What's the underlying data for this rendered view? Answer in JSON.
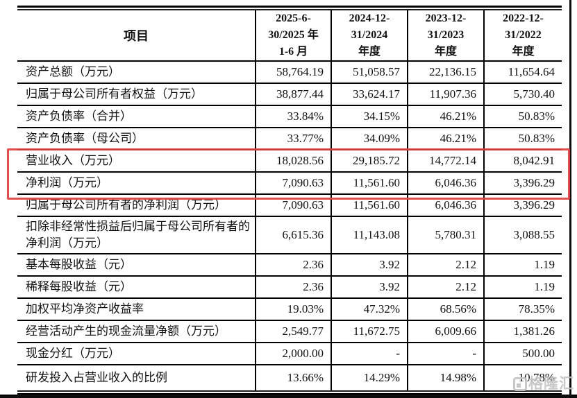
{
  "table": {
    "header": {
      "item_label": "项目",
      "periods": [
        "2025-6-\n30/2025 年\n1-6 月",
        "2024-12-\n31/2024\n年度",
        "2023-12-\n31/2023\n年度",
        "2022-12-\n31/2022\n年度"
      ]
    },
    "rows": [
      {
        "label": "资产总额（万元）",
        "values": [
          "58,764.19",
          "51,058.57",
          "22,136.15",
          "11,654.64"
        ],
        "highlighted": false
      },
      {
        "label": "归属于母公司所有者权益（万元）",
        "values": [
          "38,877.44",
          "33,624.17",
          "11,907.36",
          "5,730.40"
        ],
        "highlighted": false
      },
      {
        "label": "资产负债率（合并）",
        "values": [
          "33.84%",
          "34.15%",
          "46.21%",
          "50.83%"
        ],
        "highlighted": false
      },
      {
        "label": "资产负债率（母公司）",
        "values": [
          "33.77%",
          "34.09%",
          "46.21%",
          "50.83%"
        ],
        "highlighted": false
      },
      {
        "label": "营业收入（万元）",
        "values": [
          "18,028.56",
          "29,185.72",
          "14,772.14",
          "8,042.91"
        ],
        "highlighted": true
      },
      {
        "label": "净利润（万元）",
        "values": [
          "7,090.63",
          "11,561.60",
          "6,046.36",
          "3,396.29"
        ],
        "highlighted": true
      },
      {
        "label": "归属于母公司所有者的净利润（万元）",
        "values": [
          "7,090.63",
          "11,561.60",
          "6,046.36",
          "3,396.29"
        ],
        "highlighted": false
      },
      {
        "label": "扣除非经常性损益后归属于母公司所有者的净利润（万元）",
        "values": [
          "6,615.36",
          "11,143.08",
          "5,780.31",
          "3,088.55"
        ],
        "highlighted": false
      },
      {
        "label": "基本每股收益（元）",
        "values": [
          "2.36",
          "3.92",
          "2.12",
          "1.19"
        ],
        "highlighted": false
      },
      {
        "label": "稀释每股收益（元）",
        "values": [
          "2.36",
          "3.92",
          "2.12",
          "1.19"
        ],
        "highlighted": false
      },
      {
        "label": "加权平均净资产收益率",
        "values": [
          "19.03%",
          "47.32%",
          "68.56%",
          "78.35%"
        ],
        "highlighted": false
      },
      {
        "label": "经营活动产生的现金流量净额（万元）",
        "values": [
          "2,549.77",
          "11,672.75",
          "6,009.66",
          "1,381.26"
        ],
        "highlighted": false
      },
      {
        "label": "现金分红（万元）",
        "values": [
          "2,000.00",
          "-",
          "-",
          "500.00"
        ],
        "highlighted": false
      },
      {
        "label": "研发投入占营业收入的比例",
        "values": [
          "13.66%",
          "14.29%",
          "14.98%",
          "10.78%"
        ],
        "highlighted": false
      }
    ]
  },
  "highlight": {
    "color": "#e03e3e",
    "applies_to": [
      "营业收入（万元）",
      "净利润（万元）"
    ]
  },
  "watermark": {
    "text": "格隆汇",
    "color": "#c3c3c3"
  }
}
